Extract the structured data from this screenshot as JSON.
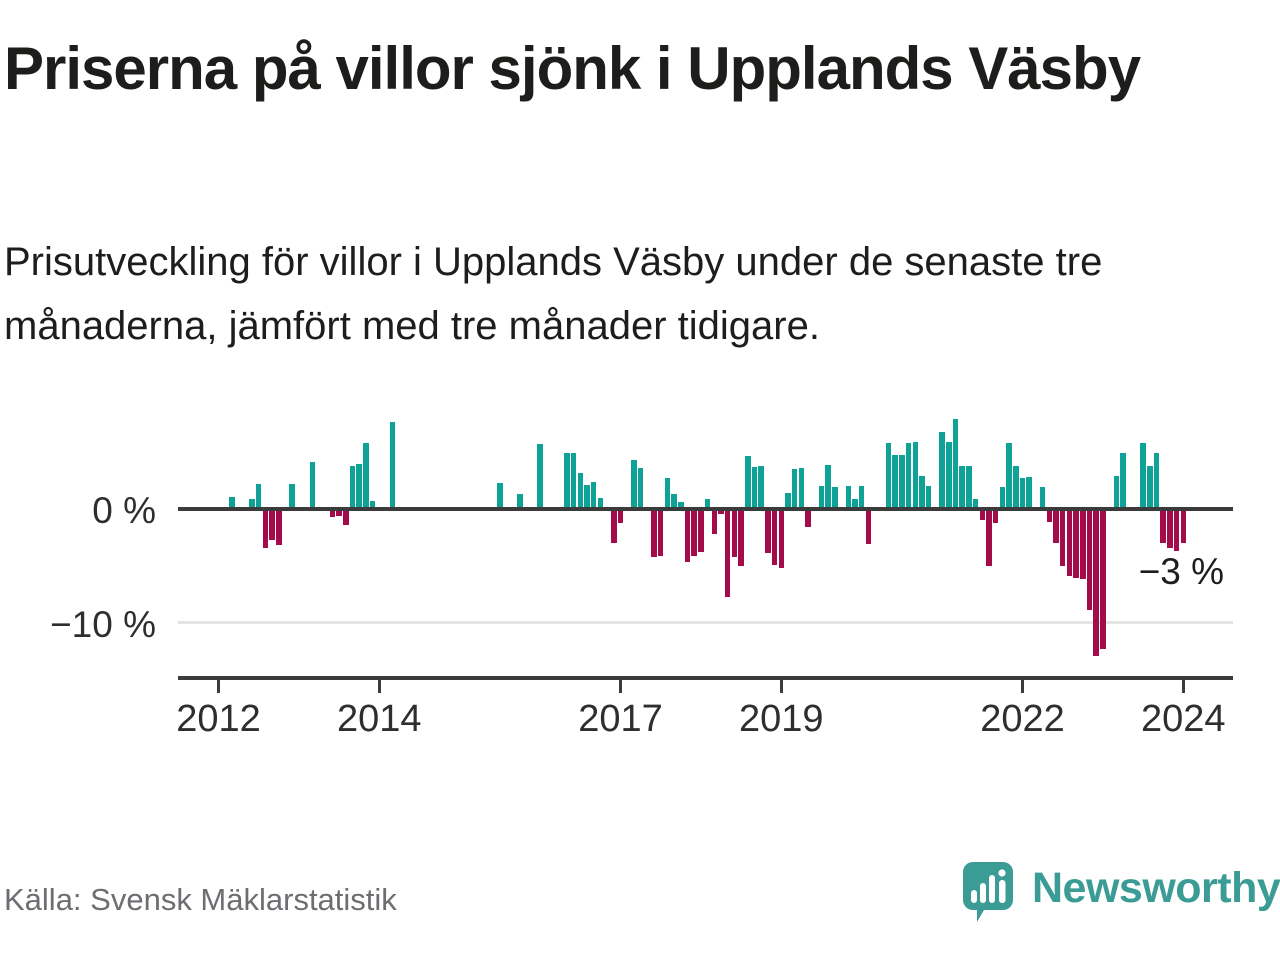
{
  "header": {
    "title": "Priserna på villor sjönk i Upplands Väsby",
    "subtitle": "Prisutveckling för villor i Upplands Väsby under de senaste tre månaderna, jämfört med tre månader tidigare."
  },
  "footer": {
    "source": "Källa: Svensk Mäklarstatistik",
    "brand": "Newsworthy"
  },
  "colors": {
    "positive": "#0fa296",
    "negative": "#a30b4b",
    "axis": "#3b3b3b",
    "grid": "#e3e3e3",
    "text": "#1d1d1b",
    "muted": "#6d6d72",
    "brand": "#3a9c94"
  },
  "chart_data": {
    "type": "bar",
    "title": "Priserna på villor sjönk i Upplands Väsby",
    "ylabel": "",
    "xlabel": "",
    "unit": "%",
    "grid": "horizontal, only at -10",
    "legend": "none",
    "ylim": [
      -14,
      9
    ],
    "x_range_months": [
      "2011-07",
      "2024-08"
    ],
    "y_ticks": [
      {
        "label": "0 %",
        "value": 0
      },
      {
        "label": "−10 %",
        "value": -10
      }
    ],
    "x_ticks": [
      2012,
      2014,
      2017,
      2019,
      2022,
      2024
    ],
    "annotation": {
      "label": "−3 %",
      "value": -3,
      "month": "2024-01"
    },
    "series": [
      {
        "month": "2012-03",
        "value": 1.1
      },
      {
        "month": "2012-06",
        "value": 0.9
      },
      {
        "month": "2012-07",
        "value": 2.2
      },
      {
        "month": "2012-08",
        "value": -3.4
      },
      {
        "month": "2012-09",
        "value": -2.7
      },
      {
        "month": "2012-10",
        "value": -3.2
      },
      {
        "month": "2012-12",
        "value": 2.2
      },
      {
        "month": "2013-03",
        "value": 4.1
      },
      {
        "month": "2013-06",
        "value": -0.7
      },
      {
        "month": "2013-07",
        "value": -0.6
      },
      {
        "month": "2013-08",
        "value": -1.4
      },
      {
        "month": "2013-09",
        "value": 3.8
      },
      {
        "month": "2013-10",
        "value": 4.0
      },
      {
        "month": "2013-11",
        "value": 5.8
      },
      {
        "month": "2013-12",
        "value": 0.7
      },
      {
        "month": "2014-03",
        "value": 7.7
      },
      {
        "month": "2015-07",
        "value": 2.3
      },
      {
        "month": "2015-10",
        "value": 1.3
      },
      {
        "month": "2016-01",
        "value": 5.7
      },
      {
        "month": "2016-05",
        "value": 4.9
      },
      {
        "month": "2016-06",
        "value": 4.9
      },
      {
        "month": "2016-07",
        "value": 3.2
      },
      {
        "month": "2016-08",
        "value": 2.1
      },
      {
        "month": "2016-09",
        "value": 2.4
      },
      {
        "month": "2016-10",
        "value": 1.0
      },
      {
        "month": "2016-12",
        "value": -3.0
      },
      {
        "month": "2017-01",
        "value": -1.2
      },
      {
        "month": "2017-03",
        "value": 4.3
      },
      {
        "month": "2017-04",
        "value": 3.6
      },
      {
        "month": "2017-06",
        "value": -4.2
      },
      {
        "month": "2017-07",
        "value": -4.1
      },
      {
        "month": "2017-08",
        "value": 2.7
      },
      {
        "month": "2017-09",
        "value": 1.3
      },
      {
        "month": "2017-10",
        "value": 0.6
      },
      {
        "month": "2017-11",
        "value": -4.7
      },
      {
        "month": "2017-12",
        "value": -4.1
      },
      {
        "month": "2018-01",
        "value": -3.8
      },
      {
        "month": "2018-02",
        "value": 0.9
      },
      {
        "month": "2018-03",
        "value": -2.2
      },
      {
        "month": "2018-04",
        "value": -0.4
      },
      {
        "month": "2018-05",
        "value": -7.7
      },
      {
        "month": "2018-06",
        "value": -4.2
      },
      {
        "month": "2018-07",
        "value": -5.0
      },
      {
        "month": "2018-08",
        "value": 4.7
      },
      {
        "month": "2018-09",
        "value": 3.7
      },
      {
        "month": "2018-10",
        "value": 3.8
      },
      {
        "month": "2018-11",
        "value": -3.9
      },
      {
        "month": "2018-12",
        "value": -4.9
      },
      {
        "month": "2019-01",
        "value": -5.2
      },
      {
        "month": "2019-02",
        "value": 1.4
      },
      {
        "month": "2019-03",
        "value": 3.5
      },
      {
        "month": "2019-04",
        "value": 3.6
      },
      {
        "month": "2019-05",
        "value": -1.6
      },
      {
        "month": "2019-07",
        "value": 2.0
      },
      {
        "month": "2019-08",
        "value": 3.9
      },
      {
        "month": "2019-09",
        "value": 1.9
      },
      {
        "month": "2019-11",
        "value": 2.0
      },
      {
        "month": "2019-12",
        "value": 0.9
      },
      {
        "month": "2020-01",
        "value": 2.0
      },
      {
        "month": "2020-02",
        "value": -3.1
      },
      {
        "month": "2020-05",
        "value": 5.8
      },
      {
        "month": "2020-06",
        "value": 4.8
      },
      {
        "month": "2020-07",
        "value": 4.8
      },
      {
        "month": "2020-08",
        "value": 5.8
      },
      {
        "month": "2020-09",
        "value": 5.9
      },
      {
        "month": "2020-10",
        "value": 2.9
      },
      {
        "month": "2020-11",
        "value": 2.0
      },
      {
        "month": "2021-01",
        "value": 6.8
      },
      {
        "month": "2021-02",
        "value": 5.9
      },
      {
        "month": "2021-03",
        "value": 7.9
      },
      {
        "month": "2021-04",
        "value": 3.8
      },
      {
        "month": "2021-05",
        "value": 3.8
      },
      {
        "month": "2021-06",
        "value": 0.9
      },
      {
        "month": "2021-07",
        "value": -1.0
      },
      {
        "month": "2021-08",
        "value": -5.0
      },
      {
        "month": "2021-09",
        "value": -1.2
      },
      {
        "month": "2021-10",
        "value": 1.9
      },
      {
        "month": "2021-11",
        "value": 5.8
      },
      {
        "month": "2021-12",
        "value": 3.8
      },
      {
        "month": "2022-01",
        "value": 2.7
      },
      {
        "month": "2022-02",
        "value": 2.8
      },
      {
        "month": "2022-04",
        "value": 1.9
      },
      {
        "month": "2022-05",
        "value": -1.1
      },
      {
        "month": "2022-06",
        "value": -3.0
      },
      {
        "month": "2022-07",
        "value": -5.0
      },
      {
        "month": "2022-08",
        "value": -5.9
      },
      {
        "month": "2022-09",
        "value": -6.1
      },
      {
        "month": "2022-10",
        "value": -6.2
      },
      {
        "month": "2022-11",
        "value": -8.9
      },
      {
        "month": "2022-12",
        "value": -12.9
      },
      {
        "month": "2023-01",
        "value": -12.3
      },
      {
        "month": "2023-03",
        "value": 2.9
      },
      {
        "month": "2023-04",
        "value": 4.9
      },
      {
        "month": "2023-07",
        "value": 5.8
      },
      {
        "month": "2023-08",
        "value": 3.8
      },
      {
        "month": "2023-09",
        "value": 4.9
      },
      {
        "month": "2023-10",
        "value": -3.0
      },
      {
        "month": "2023-11",
        "value": -3.4
      },
      {
        "month": "2023-12",
        "value": -3.7
      },
      {
        "month": "2024-01",
        "value": -3.0
      }
    ]
  }
}
